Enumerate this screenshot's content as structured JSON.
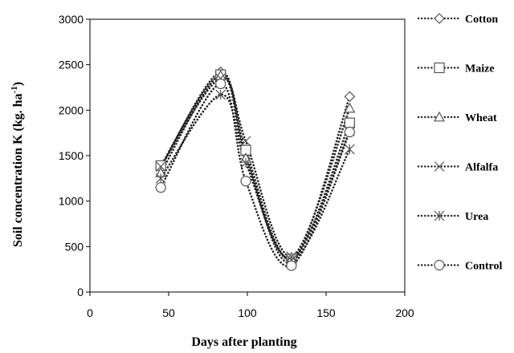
{
  "chart_data": {
    "type": "line",
    "xlabel": "Days after planting",
    "ylabel": "Soil concentration K (kg. ha",
    "ylabel_sup": "-1",
    "ylabel_close": ")",
    "xlim": [
      0,
      200
    ],
    "ylim": [
      0,
      3000
    ],
    "x_ticks": [
      "0",
      "50",
      "100",
      "150",
      "200"
    ],
    "y_ticks": [
      "0",
      "500",
      "1000",
      "1500",
      "2000",
      "2500",
      "3000"
    ],
    "grid": false,
    "legend_position": "right",
    "series": [
      {
        "name": "Cotton",
        "marker": "diamond",
        "x": [
          45,
          83,
          99,
          128,
          165
        ],
        "y": [
          1370,
          2420,
          1520,
          330,
          2150
        ]
      },
      {
        "name": "Maize",
        "marker": "square",
        "x": [
          45,
          83,
          99,
          128,
          165
        ],
        "y": [
          1390,
          2390,
          1560,
          360,
          1860
        ]
      },
      {
        "name": "Wheat",
        "marker": "triangle",
        "x": [
          45,
          83,
          99,
          128,
          165
        ],
        "y": [
          1310,
          2380,
          1470,
          380,
          2020
        ]
      },
      {
        "name": "Alfalfa",
        "marker": "x",
        "x": [
          45,
          83,
          99,
          128,
          165
        ],
        "y": [
          1380,
          2350,
          1660,
          390,
          1770
        ]
      },
      {
        "name": "Urea",
        "marker": "star",
        "x": [
          45,
          83,
          99,
          128,
          165
        ],
        "y": [
          1250,
          2170,
          1420,
          350,
          1570
        ]
      },
      {
        "name": "Control",
        "marker": "circle",
        "x": [
          45,
          83,
          99,
          128,
          165
        ],
        "y": [
          1150,
          2290,
          1220,
          290,
          1760
        ]
      }
    ]
  }
}
